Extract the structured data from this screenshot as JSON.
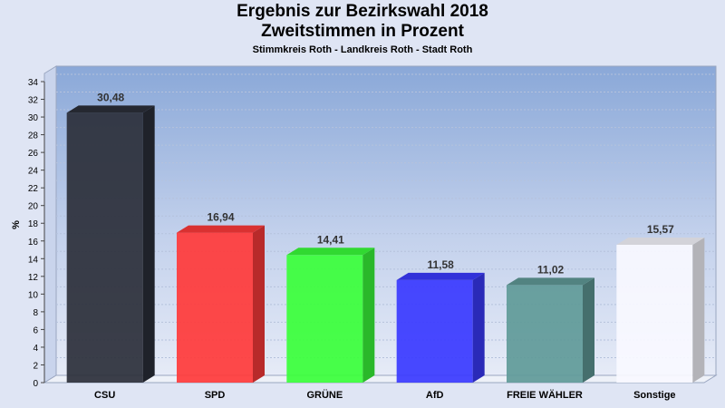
{
  "chart_data": {
    "type": "bar",
    "title_lines": [
      "Ergebnis zur Bezirkswahl 2018",
      "Zweitstimmen in Prozent"
    ],
    "subtitle": "Stimmkreis Roth - Landkreis Roth - Stadt Roth",
    "ylabel": "%",
    "ylim": [
      0,
      34
    ],
    "yticks": [
      0,
      2,
      4,
      6,
      8,
      10,
      12,
      14,
      16,
      18,
      20,
      22,
      24,
      26,
      28,
      30,
      32,
      34
    ],
    "grid": true,
    "categories": [
      "CSU",
      "SPD",
      "GRÜNE",
      "AfD",
      "FREIE WÄHLER",
      "Sonstige"
    ],
    "values": [
      30.48,
      16.94,
      14.41,
      11.58,
      11.02,
      15.57
    ],
    "value_labels": [
      "30,48",
      "16,94",
      "14,41",
      "11,58",
      "11,02",
      "15,57"
    ],
    "colors": [
      "#2b2f3a",
      "#ff3a3a",
      "#3aff3a",
      "#3a3aff",
      "#609a98",
      "#f8f8ff"
    ]
  }
}
